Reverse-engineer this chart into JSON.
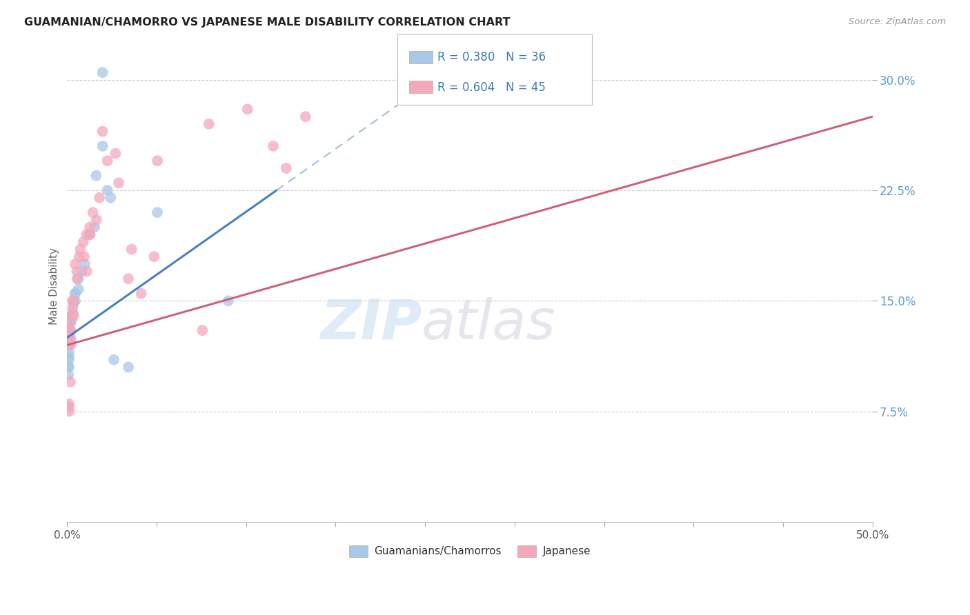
{
  "title": "GUAMANIAN/CHAMORRO VS JAPANESE MALE DISABILITY CORRELATION CHART",
  "source": "Source: ZipAtlas.com",
  "ylabel": "Male Disability",
  "xlim": [
    0.0,
    50.0
  ],
  "ylim": [
    0.0,
    32.0
  ],
  "yticks": [
    7.5,
    15.0,
    22.5,
    30.0
  ],
  "blue_label": "Guamanians/Chamorros",
  "pink_label": "Japanese",
  "blue_R": 0.38,
  "blue_N": 36,
  "pink_R": 0.604,
  "pink_N": 45,
  "blue_color": "#a8c8e8",
  "pink_color": "#f4a8bc",
  "blue_line_color": "#4a7fc0",
  "pink_line_color": "#d0607a",
  "blue_scatter_alpha": 0.75,
  "pink_scatter_alpha": 0.75,
  "watermark_color": "#c8dff0",
  "blue_x": [
    2.2,
    2.2,
    2.5,
    2.7,
    1.8,
    1.7,
    1.4,
    1.1,
    0.9,
    0.7,
    0.7,
    0.5,
    0.5,
    0.5,
    0.4,
    0.35,
    0.3,
    0.28,
    0.22,
    0.2,
    0.2,
    0.18,
    0.17,
    0.16,
    0.12,
    0.12,
    0.11,
    0.11,
    0.1,
    0.1,
    0.08,
    0.08,
    2.9,
    3.8,
    5.6,
    10.0
  ],
  "blue_y": [
    30.5,
    25.5,
    22.5,
    22.0,
    23.5,
    20.0,
    19.5,
    17.5,
    17.0,
    16.5,
    15.8,
    15.5,
    15.5,
    15.0,
    14.8,
    14.2,
    14.0,
    13.7,
    13.5,
    13.0,
    12.5,
    13.0,
    12.8,
    12.2,
    12.5,
    12.0,
    11.5,
    11.2,
    11.0,
    10.5,
    10.5,
    10.0,
    11.0,
    10.5,
    21.0,
    15.0
  ],
  "pink_x": [
    0.1,
    0.12,
    0.14,
    0.15,
    0.2,
    0.22,
    0.25,
    0.28,
    0.32,
    0.33,
    0.4,
    0.42,
    0.5,
    0.6,
    0.62,
    0.75,
    0.82,
    1.0,
    1.05,
    1.2,
    1.22,
    1.4,
    1.42,
    1.6,
    1.82,
    2.0,
    2.2,
    2.5,
    3.0,
    3.2,
    3.8,
    4.0,
    4.6,
    5.4,
    5.6,
    8.4,
    8.8,
    11.2,
    12.8,
    13.6,
    14.8,
    0.11,
    0.12,
    0.13,
    0.2
  ],
  "pink_y": [
    13.5,
    12.8,
    13.0,
    12.5,
    13.0,
    12.0,
    12.2,
    14.0,
    15.0,
    14.5,
    15.0,
    14.0,
    17.5,
    17.0,
    16.5,
    18.0,
    18.5,
    19.0,
    18.0,
    19.5,
    17.0,
    20.0,
    19.5,
    21.0,
    20.5,
    22.0,
    26.5,
    24.5,
    25.0,
    23.0,
    16.5,
    18.5,
    15.5,
    18.0,
    24.5,
    13.0,
    27.0,
    28.0,
    25.5,
    24.0,
    27.5,
    8.0,
    7.8,
    7.5,
    9.5
  ],
  "blue_trend_x0": 0.0,
  "blue_trend_y0": 12.5,
  "blue_trend_x1": 13.0,
  "blue_trend_y1": 22.5,
  "blue_dash_x0": 13.0,
  "blue_dash_x1": 50.0,
  "pink_trend_x0": 0.0,
  "pink_trend_y0": 12.0,
  "pink_trend_x1": 50.0,
  "pink_trend_y1": 27.5,
  "legend_R_color": "#3a7abf",
  "legend_N_color": "#3a7abf",
  "ytick_color": "#5b9bd5",
  "xtick_color": "#555555",
  "grid_color": "#cccccc"
}
